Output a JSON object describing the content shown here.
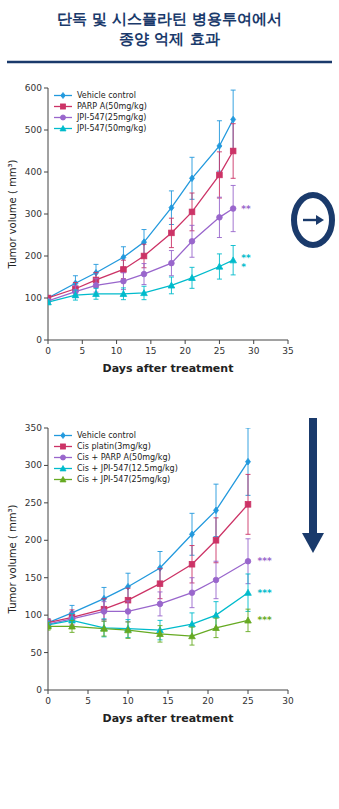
{
  "chart_data": [
    {
      "type": "line",
      "title": "단독 및 시스플라틴 병용투여에서\n종양 억제 효과",
      "x_label": "Days after treatment",
      "y_label": "Tumor volume ( mm³)",
      "xlim": [
        0,
        35
      ],
      "ylim": [
        0,
        600
      ],
      "xticks": [
        0,
        5,
        10,
        15,
        20,
        25,
        30,
        35
      ],
      "yticks": [
        0,
        100,
        200,
        300,
        400,
        500,
        600
      ],
      "grid": false,
      "legend": "upper left",
      "x": [
        0,
        4,
        7,
        11,
        14,
        18,
        21,
        25,
        27
      ],
      "series": [
        {
          "name": "Vehicle control",
          "color": "#2299dd",
          "marker": "diamond",
          "values": [
            100,
            135,
            160,
            197,
            233,
            315,
            385,
            462,
            525
          ],
          "yerr": [
            5,
            18,
            20,
            25,
            30,
            40,
            50,
            60,
            70
          ]
        },
        {
          "name": "PARP A(50mg/kg)",
          "color": "#cc3366",
          "marker": "square",
          "values": [
            100,
            122,
            143,
            168,
            200,
            255,
            305,
            393,
            450
          ],
          "yerr": [
            5,
            15,
            18,
            22,
            28,
            35,
            45,
            55,
            65
          ]
        },
        {
          "name": "JPI-547(25mg/kg)",
          "color": "#9966cc",
          "marker": "circle",
          "values": [
            93,
            115,
            130,
            140,
            157,
            183,
            235,
            292,
            313
          ],
          "yerr": [
            5,
            14,
            16,
            20,
            25,
            30,
            38,
            48,
            55
          ]
        },
        {
          "name": "JPI-547(50mg/kg)",
          "color": "#00bbcc",
          "marker": "triangle",
          "values": [
            90,
            107,
            110,
            110,
            112,
            130,
            148,
            175,
            190
          ],
          "yerr": [
            5,
            12,
            13,
            14,
            16,
            20,
            25,
            30,
            35
          ]
        }
      ],
      "annotations": [
        {
          "text": "**",
          "x": 28.2,
          "y": 313,
          "color": "#9966cc"
        },
        {
          "text": "**",
          "x": 28.2,
          "y": 195,
          "color": "#00bbcc"
        },
        {
          "text": "*",
          "x": 28.2,
          "y": 175,
          "color": "#00bbcc"
        }
      ]
    },
    {
      "type": "line",
      "x_label": "Days after treatment",
      "y_label": "Tumor volume ( mm³)",
      "xlim": [
        0,
        30
      ],
      "ylim": [
        0,
        350
      ],
      "xticks": [
        0,
        5,
        10,
        15,
        20,
        25,
        30
      ],
      "yticks": [
        0,
        50,
        100,
        150,
        200,
        250,
        300,
        350
      ],
      "grid": false,
      "legend": "upper left",
      "x": [
        0,
        3,
        7,
        10,
        14,
        18,
        21,
        25
      ],
      "series": [
        {
          "name": "Vehicle control",
          "color": "#2299dd",
          "marker": "diamond",
          "values": [
            90,
            103,
            122,
            138,
            163,
            208,
            240,
            305
          ],
          "yerr": [
            5,
            10,
            15,
            18,
            22,
            28,
            35,
            45
          ]
        },
        {
          "name": "Cis platin(3mg/kg)",
          "color": "#cc3366",
          "marker": "square",
          "values": [
            90,
            97,
            108,
            120,
            142,
            168,
            200,
            248
          ],
          "yerr": [
            5,
            10,
            14,
            16,
            20,
            25,
            30,
            40
          ]
        },
        {
          "name": "Cis + PARP A(50mg/kg)",
          "color": "#9966cc",
          "marker": "circle",
          "values": [
            88,
            95,
            105,
            105,
            115,
            130,
            147,
            172
          ],
          "yerr": [
            5,
            9,
            13,
            14,
            16,
            20,
            25,
            30
          ]
        },
        {
          "name": "Cis + JPI-547(12.5mg/kg)",
          "color": "#00bbcc",
          "marker": "triangle",
          "values": [
            87,
            93,
            83,
            82,
            80,
            88,
            100,
            130
          ],
          "yerr": [
            5,
            9,
            12,
            12,
            13,
            15,
            18,
            25
          ]
        },
        {
          "name": "Cis + JPI-547(25mg/kg)",
          "color": "#66aa22",
          "marker": "triangle",
          "values": [
            85,
            85,
            82,
            80,
            75,
            72,
            83,
            93
          ],
          "yerr": [
            5,
            8,
            10,
            11,
            11,
            12,
            13,
            15
          ]
        }
      ],
      "annotations": [
        {
          "text": "***",
          "x": 26.2,
          "y": 172,
          "color": "#9966cc"
        },
        {
          "text": "***",
          "x": 26.2,
          "y": 130,
          "color": "#00bbcc"
        },
        {
          "text": "***",
          "x": 26.2,
          "y": 93,
          "color": "#66aa22"
        }
      ]
    }
  ]
}
